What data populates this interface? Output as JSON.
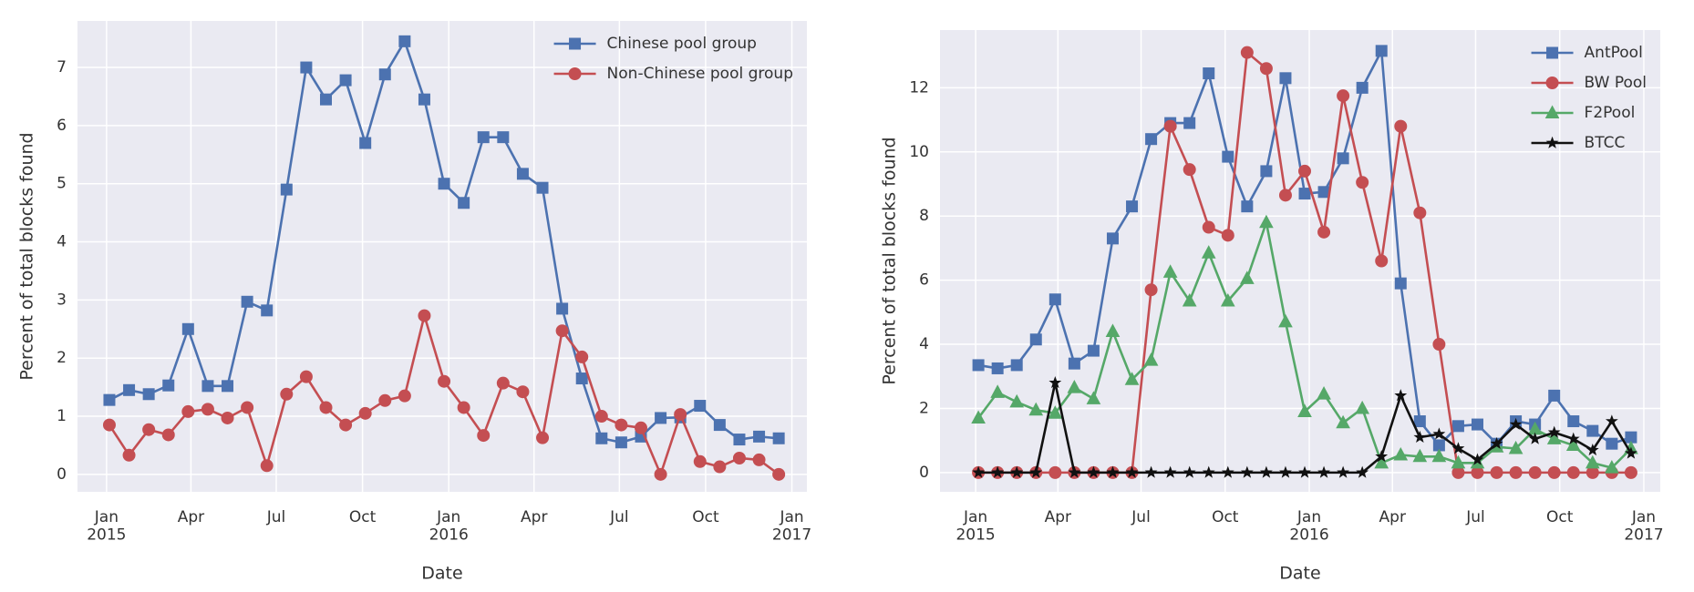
{
  "chart_data": [
    {
      "type": "line",
      "xlabel": "Date",
      "ylabel": "Percent of total blocks found",
      "x": [
        "2015-01-04",
        "2015-01-25",
        "2015-02-15",
        "2015-03-08",
        "2015-03-29",
        "2015-04-19",
        "2015-05-10",
        "2015-05-31",
        "2015-06-21",
        "2015-07-12",
        "2015-08-02",
        "2015-08-23",
        "2015-09-13",
        "2015-10-04",
        "2015-10-25",
        "2015-11-15",
        "2015-12-06",
        "2015-12-27",
        "2016-01-17",
        "2016-02-07",
        "2016-02-28",
        "2016-03-20",
        "2016-04-10",
        "2016-05-01",
        "2016-05-22",
        "2016-06-12",
        "2016-07-03",
        "2016-07-24",
        "2016-08-14",
        "2016-09-04",
        "2016-09-25",
        "2016-10-16",
        "2016-11-06",
        "2016-11-27",
        "2016-12-18"
      ],
      "xlim": [
        "2014-12-01",
        "2017-01-17"
      ],
      "xticks": [
        {
          "value": "2015-01",
          "label": "Jan\n2015"
        },
        {
          "value": "2015-04",
          "label": "Apr"
        },
        {
          "value": "2015-07",
          "label": "Jul"
        },
        {
          "value": "2015-10",
          "label": "Oct"
        },
        {
          "value": "2016-01",
          "label": "Jan\n2016"
        },
        {
          "value": "2016-04",
          "label": "Apr"
        },
        {
          "value": "2016-07",
          "label": "Jul"
        },
        {
          "value": "2016-10",
          "label": "Oct"
        },
        {
          "value": "2017-01",
          "label": "Jan\n2017"
        }
      ],
      "ylim": [
        -0.3,
        7.8
      ],
      "yticks": [
        0,
        1,
        2,
        3,
        4,
        5,
        6,
        7
      ],
      "grid": true,
      "legend": "upper right",
      "series": [
        {
          "name": "Chinese pool group",
          "color": "#4c72b0",
          "marker": "square",
          "values": [
            1.28,
            1.45,
            1.38,
            1.53,
            2.5,
            1.52,
            1.52,
            2.97,
            2.82,
            4.9,
            7.0,
            6.45,
            6.78,
            5.7,
            6.88,
            7.45,
            6.45,
            5.0,
            4.67,
            5.8,
            5.8,
            5.17,
            4.93,
            2.85,
            1.65,
            0.62,
            0.55,
            0.65,
            0.97,
            0.98,
            1.18,
            0.85,
            0.6,
            0.65,
            0.62
          ]
        },
        {
          "name": "Non-Chinese pool group",
          "color": "#c44e52",
          "marker": "circle",
          "values": [
            0.85,
            0.33,
            0.77,
            0.68,
            1.08,
            1.12,
            0.97,
            1.15,
            0.15,
            1.38,
            1.68,
            1.15,
            0.85,
            1.05,
            1.27,
            1.35,
            2.73,
            1.6,
            1.15,
            0.67,
            1.57,
            1.42,
            0.63,
            2.47,
            2.02,
            1.0,
            0.85,
            0.8,
            0.0,
            1.03,
            0.22,
            0.13,
            0.28,
            0.25,
            0.0
          ]
        }
      ]
    },
    {
      "type": "line",
      "xlabel": "Date",
      "ylabel": "Percent of total blocks found",
      "x": [
        "2015-01-04",
        "2015-01-25",
        "2015-02-15",
        "2015-03-08",
        "2015-03-29",
        "2015-04-19",
        "2015-05-10",
        "2015-05-31",
        "2015-06-21",
        "2015-07-12",
        "2015-08-02",
        "2015-08-23",
        "2015-09-13",
        "2015-10-04",
        "2015-10-25",
        "2015-11-15",
        "2015-12-06",
        "2015-12-27",
        "2016-01-17",
        "2016-02-07",
        "2016-02-28",
        "2016-03-20",
        "2016-04-10",
        "2016-05-01",
        "2016-05-22",
        "2016-06-12",
        "2016-07-03",
        "2016-07-24",
        "2016-08-14",
        "2016-09-04",
        "2016-09-25",
        "2016-10-16",
        "2016-11-06",
        "2016-11-27",
        "2016-12-18"
      ],
      "xlim": [
        "2014-11-23",
        "2017-01-19"
      ],
      "xticks": [
        {
          "value": "2015-01",
          "label": "Jan\n2015"
        },
        {
          "value": "2015-04",
          "label": "Apr"
        },
        {
          "value": "2015-07",
          "label": "Jul"
        },
        {
          "value": "2015-10",
          "label": "Oct"
        },
        {
          "value": "2016-01",
          "label": "Jan\n2016"
        },
        {
          "value": "2016-04",
          "label": "Apr"
        },
        {
          "value": "2016-07",
          "label": "Jul"
        },
        {
          "value": "2016-10",
          "label": "Oct"
        },
        {
          "value": "2017-01",
          "label": "Jan\n2017"
        }
      ],
      "ylim": [
        -0.6,
        13.8
      ],
      "yticks": [
        0,
        2,
        4,
        6,
        8,
        10,
        12
      ],
      "grid": true,
      "legend": "upper right",
      "series": [
        {
          "name": "AntPool",
          "color": "#4c72b0",
          "marker": "square",
          "values": [
            3.35,
            3.25,
            3.35,
            4.15,
            5.4,
            3.4,
            3.8,
            7.3,
            8.3,
            10.4,
            10.9,
            10.9,
            12.45,
            9.85,
            8.3,
            9.4,
            12.3,
            8.7,
            8.75,
            9.8,
            12.0,
            13.15,
            5.9,
            1.6,
            0.85,
            1.45,
            1.5,
            0.9,
            1.6,
            1.5,
            2.4,
            1.6,
            1.3,
            0.9,
            1.1
          ]
        },
        {
          "name": "BW Pool",
          "color": "#c44e52",
          "marker": "circle",
          "values": [
            0,
            0,
            0,
            0,
            0,
            0,
            0,
            0,
            0,
            5.7,
            10.8,
            9.45,
            7.65,
            7.4,
            13.1,
            12.6,
            8.65,
            9.4,
            7.5,
            11.75,
            9.05,
            6.6,
            10.8,
            8.1,
            4.0,
            0,
            0,
            0,
            0,
            0,
            0,
            0,
            0,
            0,
            0
          ]
        },
        {
          "name": "F2Pool",
          "color": "#55a868",
          "marker": "triangle",
          "values": [
            1.7,
            2.5,
            2.2,
            1.95,
            1.85,
            2.65,
            2.3,
            4.4,
            2.9,
            3.5,
            6.25,
            5.35,
            6.85,
            5.35,
            6.05,
            7.8,
            4.7,
            1.9,
            2.45,
            1.55,
            2.0,
            0.3,
            0.55,
            0.5,
            0.5,
            0.3,
            0.3,
            0.8,
            0.75,
            1.35,
            1.05,
            0.85,
            0.3,
            0.15,
            0.75
          ]
        },
        {
          "name": "BTCC",
          "color": "#111111",
          "marker": "star",
          "values": [
            0,
            0,
            0,
            0,
            2.8,
            0,
            0,
            0,
            0,
            0,
            0,
            0,
            0,
            0,
            0,
            0,
            0,
            0,
            0,
            0,
            0,
            0.5,
            2.4,
            1.1,
            1.2,
            0.75,
            0.4,
            0.9,
            1.5,
            1.05,
            1.25,
            1.05,
            0.7,
            1.6,
            0.6
          ]
        }
      ]
    }
  ]
}
